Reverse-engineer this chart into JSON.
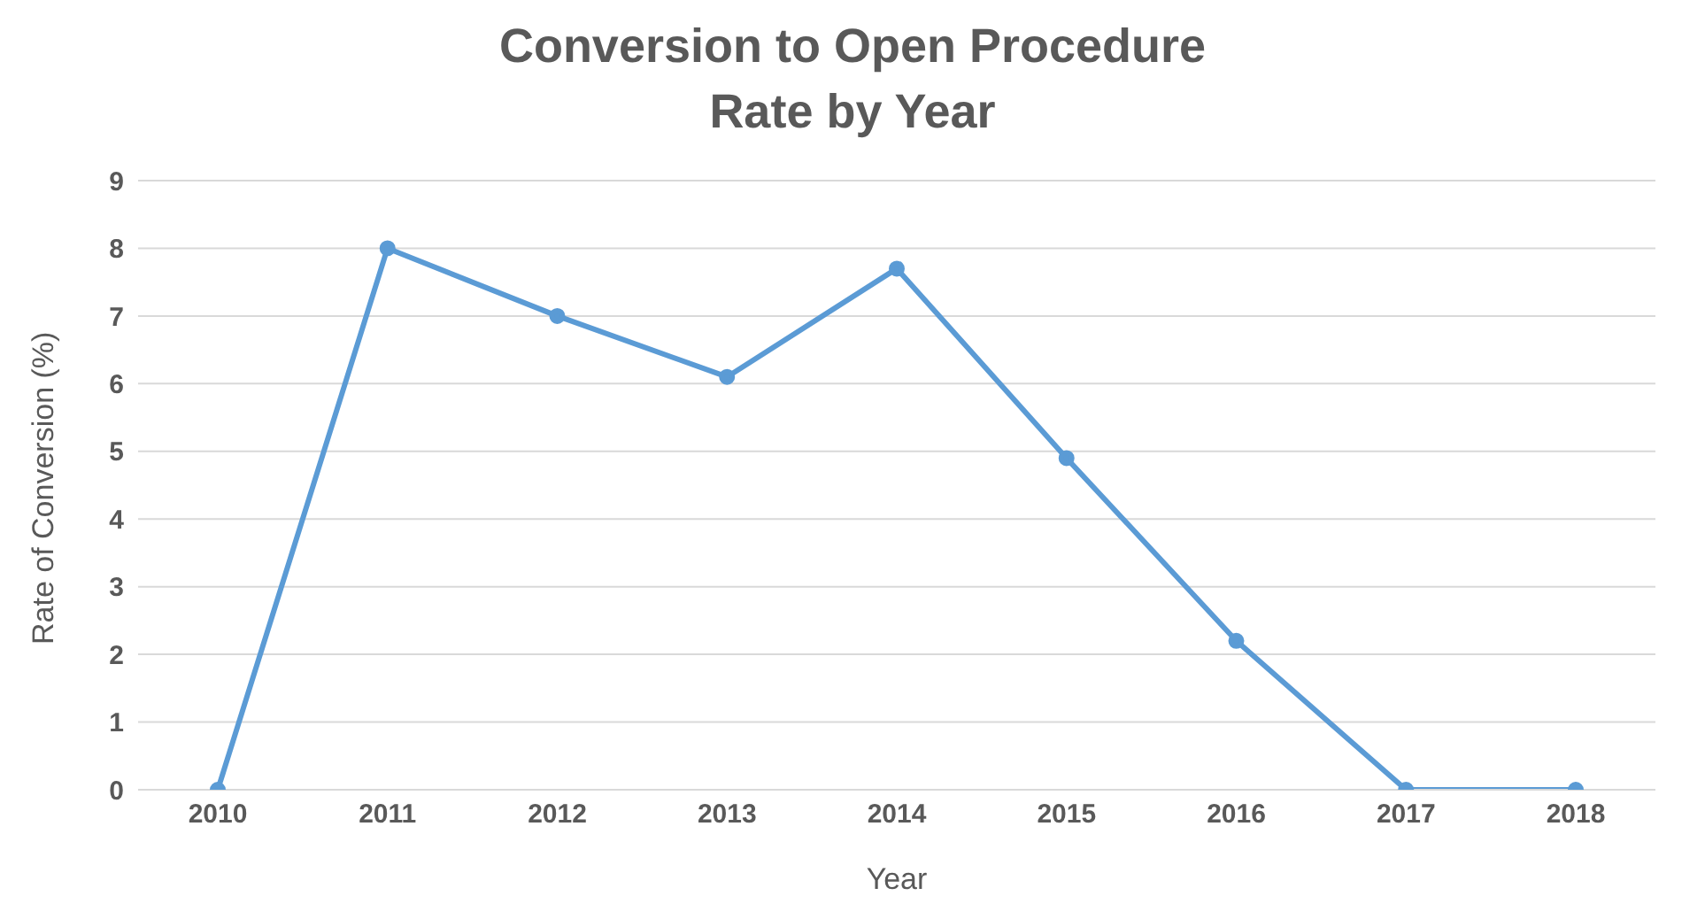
{
  "chart_data": {
    "type": "line",
    "title": "Conversion to Open Procedure Rate by Year",
    "xlabel": "Year",
    "ylabel": "Rate of Conversion (%)",
    "categories": [
      "2010",
      "2011",
      "2012",
      "2013",
      "2014",
      "2015",
      "2016",
      "2017",
      "2018"
    ],
    "series": [
      {
        "color": "#5b9bd5",
        "values": [
          0,
          8.0,
          7.0,
          6.1,
          7.7,
          4.9,
          2.2,
          0,
          0
        ]
      }
    ],
    "ylim": [
      0,
      9
    ],
    "yticks": [
      0,
      1,
      2,
      3,
      4,
      5,
      6,
      7,
      8,
      9
    ],
    "grid": "y",
    "marker": "circle",
    "line_style": "solid"
  }
}
